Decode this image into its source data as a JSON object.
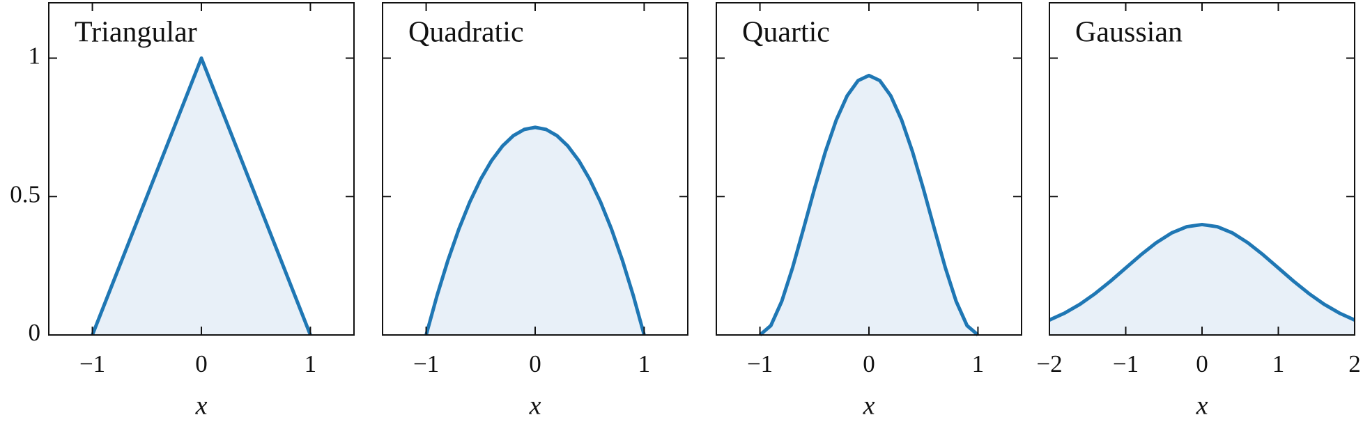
{
  "chart_data": [
    {
      "type": "area",
      "title": "Triangular",
      "x_label": "x",
      "color": "#1f77b4",
      "fill": "#e8f0f8",
      "x": [
        -1,
        0,
        1
      ],
      "values": [
        0,
        1,
        0
      ],
      "xlim": [
        -1.4,
        1.4
      ],
      "xticks": [
        {
          "value": -1,
          "label": "−1"
        },
        0,
        1
      ],
      "ylim": [
        0,
        1.2
      ],
      "yticks": [
        0,
        0.5,
        1
      ]
    },
    {
      "type": "area",
      "title": "Quadratic",
      "x_label": "x",
      "color": "#1f77b4",
      "fill": "#e8f0f8",
      "sharey": true,
      "x": [
        -1,
        -0.9,
        -0.8,
        -0.7,
        -0.6,
        -0.5,
        -0.4,
        -0.3,
        -0.2,
        -0.1,
        0,
        0.1,
        0.2,
        0.3,
        0.4,
        0.5,
        0.6,
        0.7,
        0.8,
        0.9,
        1
      ],
      "values": [
        0,
        0.1425,
        0.27,
        0.3825,
        0.48,
        0.5625,
        0.63,
        0.6825,
        0.72,
        0.7425,
        0.75,
        0.7425,
        0.72,
        0.6825,
        0.63,
        0.5625,
        0.48,
        0.3825,
        0.27,
        0.1425,
        0
      ],
      "xlim": [
        -1.4,
        1.4
      ],
      "xticks": [
        {
          "value": -1,
          "label": "−1"
        },
        0,
        1
      ]
    },
    {
      "type": "area",
      "title": "Quartic",
      "x_label": "x",
      "color": "#1f77b4",
      "fill": "#e8f0f8",
      "sharey": true,
      "x": [
        -1,
        -0.9,
        -0.8,
        -0.7,
        -0.6,
        -0.5,
        -0.4,
        -0.3,
        -0.2,
        -0.1,
        0,
        0.1,
        0.2,
        0.3,
        0.4,
        0.5,
        0.6,
        0.7,
        0.8,
        0.9,
        1
      ],
      "values": [
        0,
        0.0338,
        0.1215,
        0.2438,
        0.384,
        0.5273,
        0.6615,
        0.7763,
        0.864,
        0.9188,
        0.9375,
        0.9188,
        0.864,
        0.7763,
        0.6615,
        0.5273,
        0.384,
        0.2438,
        0.1215,
        0.0338,
        0
      ],
      "xlim": [
        -1.4,
        1.4
      ],
      "xticks": [
        {
          "value": -1,
          "label": "−1"
        },
        0,
        1
      ]
    },
    {
      "type": "area",
      "title": "Gaussian",
      "x_label": "x",
      "color": "#1f77b4",
      "fill": "#e8f0f8",
      "sharey": true,
      "x": [
        -2,
        -1.8,
        -1.6,
        -1.4,
        -1.2,
        -1,
        -0.8,
        -0.6,
        -0.4,
        -0.2,
        0,
        0.2,
        0.4,
        0.6,
        0.8,
        1,
        1.2,
        1.4,
        1.6,
        1.8,
        2
      ],
      "values": [
        0.054,
        0.079,
        0.1109,
        0.1497,
        0.1942,
        0.242,
        0.2897,
        0.3332,
        0.3683,
        0.391,
        0.3989,
        0.391,
        0.3683,
        0.3332,
        0.2897,
        0.242,
        0.1942,
        0.1497,
        0.1109,
        0.079,
        0.054
      ],
      "xlim": [
        -2,
        2
      ],
      "xticks": [
        {
          "value": -2,
          "label": "−2"
        },
        {
          "value": -1,
          "label": "−1"
        },
        0,
        1,
        2
      ]
    }
  ]
}
